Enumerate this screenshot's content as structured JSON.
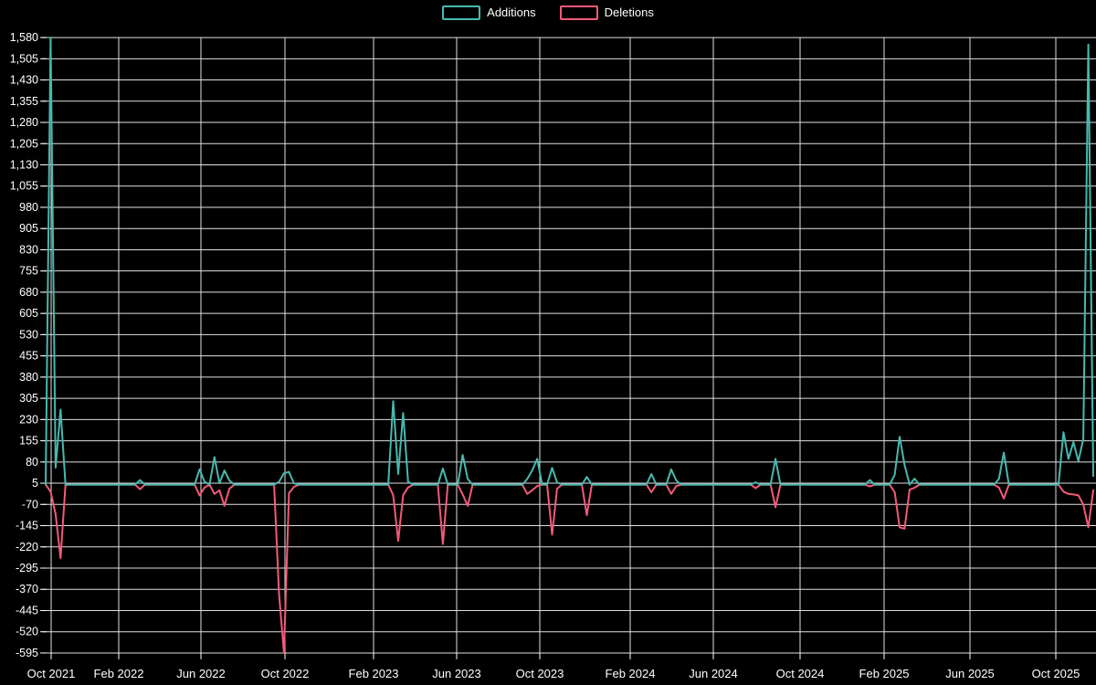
{
  "chart_data": {
    "type": "line",
    "title": "",
    "legend_position": "top-center",
    "grid": true,
    "background_color": "#000000",
    "grid_color": "#e0e0e0",
    "text_color": "#ffffff",
    "x_axis": {
      "kind": "time-weekly",
      "tick_labels": [
        "Oct 2021",
        "Feb 2022",
        "Jun 2022",
        "Oct 2022",
        "Feb 2023",
        "Jun 2023",
        "Oct 2023",
        "Feb 2024",
        "Jun 2024",
        "Oct 2024",
        "Feb 2025",
        "Jun 2025",
        "Oct 2025"
      ]
    },
    "y_axis": {
      "min": -595,
      "max": 1580,
      "interval": 75,
      "tick_labels": [
        "1,580",
        "1,505",
        "1,430",
        "1,355",
        "1,280",
        "1,205",
        "1,130",
        "1,055",
        "980",
        "905",
        "830",
        "755",
        "680",
        "605",
        "530",
        "455",
        "380",
        "305",
        "230",
        "155",
        "80",
        "5",
        "-70",
        "-145",
        "-220",
        "-295",
        "-370",
        "-445",
        "-520",
        "-595"
      ]
    },
    "weeks_total": 212,
    "series": [
      {
        "name": "Additions",
        "color": "#46b9af"
      },
      {
        "name": "Deletions",
        "color": "#f45a78"
      }
    ],
    "nonzero_weeks_comment": "each entry = [week_index, additions, deletions]; all other weeks are 0/0",
    "nonzero_weeks": [
      [
        1,
        1580,
        -25
      ],
      [
        2,
        60,
        -105
      ],
      [
        3,
        265,
        -260
      ],
      [
        19,
        16,
        -16
      ],
      [
        31,
        54,
        -38
      ],
      [
        32,
        10,
        -10
      ],
      [
        34,
        97,
        -33
      ],
      [
        35,
        5,
        -20
      ],
      [
        36,
        50,
        -75
      ],
      [
        37,
        15,
        -15
      ],
      [
        47,
        10,
        -385
      ],
      [
        48,
        40,
        -595
      ],
      [
        49,
        45,
        -30
      ],
      [
        50,
        5,
        -8
      ],
      [
        70,
        295,
        -37
      ],
      [
        71,
        37,
        -199
      ],
      [
        72,
        253,
        -37
      ],
      [
        73,
        10,
        -10
      ],
      [
        80,
        57,
        -210
      ],
      [
        84,
        105,
        -35
      ],
      [
        85,
        20,
        -75
      ],
      [
        97,
        20,
        -33
      ],
      [
        98,
        50,
        -20
      ],
      [
        99,
        91,
        -5
      ],
      [
        102,
        59,
        -177
      ],
      [
        103,
        8,
        -15
      ],
      [
        109,
        27,
        -108
      ],
      [
        122,
        37,
        -27
      ],
      [
        126,
        54,
        -33
      ],
      [
        127,
        15,
        -5
      ],
      [
        143,
        8,
        -13
      ],
      [
        147,
        91,
        -80
      ],
      [
        166,
        16,
        -6
      ],
      [
        171,
        35,
        -27
      ],
      [
        172,
        169,
        -151
      ],
      [
        173,
        70,
        -156
      ],
      [
        174,
        0,
        -18
      ],
      [
        175,
        21,
        -11
      ],
      [
        192,
        20,
        -10
      ],
      [
        193,
        113,
        -49
      ],
      [
        205,
        185,
        -25
      ],
      [
        206,
        91,
        -33
      ],
      [
        207,
        150,
        -35
      ],
      [
        208,
        83,
        -38
      ],
      [
        209,
        161,
        -70
      ],
      [
        210,
        1555,
        -151
      ],
      [
        211,
        30,
        -20
      ]
    ]
  },
  "legend": {
    "additions_label": "Additions",
    "deletions_label": "Deletions"
  },
  "colors": {
    "background": "#000000",
    "grid": "#e0e0e0",
    "text": "#ffffff",
    "additions": "#46b9af",
    "deletions": "#f45a78"
  }
}
